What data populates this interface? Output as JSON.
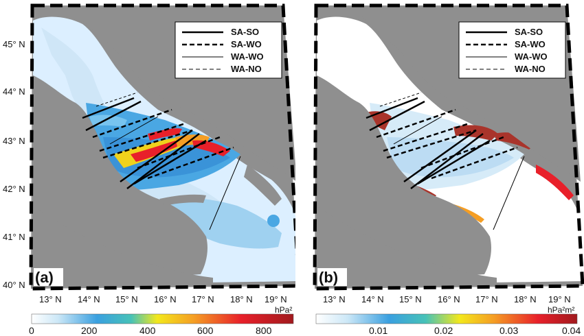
{
  "panels": [
    {
      "label": "(a)",
      "colorbar": {
        "ticks": [
          "0",
          "200",
          "400",
          "600",
          "800"
        ],
        "unit": "hPa²",
        "min": 0,
        "max": 900
      }
    },
    {
      "label": "(b)",
      "colorbar": {
        "ticks": [
          "0.01",
          "0.02",
          "0.03",
          "0.04"
        ],
        "unit": "hPa²m²",
        "min": 0,
        "max": 0.04
      }
    }
  ],
  "lat_labels": [
    "45° N",
    "44° N",
    "43° N",
    "42° N",
    "41° N",
    "40° N"
  ],
  "lon_labels": [
    "13° N",
    "14° N",
    "15° N",
    "16° N",
    "17° N",
    "18° N",
    "19° N"
  ],
  "legend": [
    {
      "label": "SA-SO",
      "style": "thick-solid"
    },
    {
      "label": "SA-WO",
      "style": "thick-dashed"
    },
    {
      "label": "WA-WO",
      "style": "thin-solid"
    },
    {
      "label": "WA-NO",
      "style": "thin-dashed"
    }
  ],
  "colors": {
    "land": "#8f8f8f",
    "sea_low": "#cde8f7",
    "sea_mid": "#3aa0e0",
    "high": "#e8202a",
    "frame": "#000000"
  }
}
